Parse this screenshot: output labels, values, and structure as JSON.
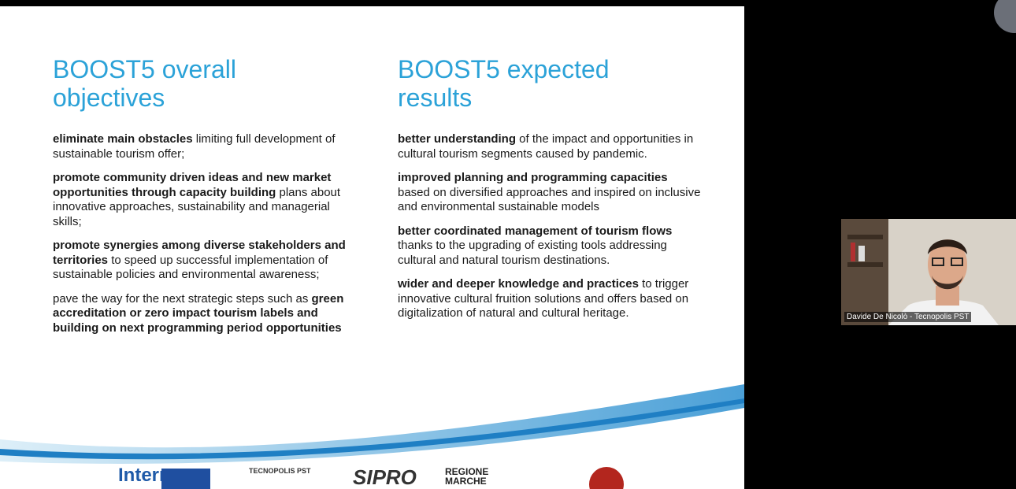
{
  "slide": {
    "left": {
      "title": "BOOST5 overall objectives",
      "items": [
        [
          {
            "text": "eliminate main obstacles",
            "bold": true
          },
          {
            "text": " limiting full development of sustainable tourism offer;",
            "bold": false
          }
        ],
        [
          {
            "text": "promote community driven ideas and new market opportunities through capacity building",
            "bold": true
          },
          {
            "text": " plans about innovative approaches, sustainability and managerial skills;",
            "bold": false
          }
        ],
        [
          {
            "text": "promote synergies among diverse stakeholders and territories",
            "bold": true
          },
          {
            "text": " to speed up successful implementation of sustainable policies and environmental awareness;",
            "bold": false
          }
        ],
        [
          {
            "text": "pave the way for the next strategic steps such as ",
            "bold": false
          },
          {
            "text": "green accreditation or zero impact tourism labels and building on next programming period opportunities",
            "bold": true
          }
        ]
      ]
    },
    "right": {
      "title": "BOOST5 expected results",
      "items": [
        [
          {
            "text": "better understanding",
            "bold": true
          },
          {
            "text": " of the impact and opportunities in cultural tourism segments caused by pandemic.",
            "bold": false
          }
        ],
        [
          {
            "text": "improved planning and programming capacities",
            "bold": true
          },
          {
            "text": " based on diversified approaches and inspired on inclusive and environmental sustainable models",
            "bold": false
          }
        ],
        [
          {
            "text": "better coordinated management of tourism flows",
            "bold": true
          },
          {
            "text": " thanks to the upgrading of existing tools addressing cultural and natural tourism destinations.",
            "bold": false
          }
        ],
        [
          {
            "text": "wider and deeper knowledge and practices",
            "bold": true
          },
          {
            "text": " to trigger innovative cultural fruition solutions and offers based on digitalization of natural and cultural heritage.",
            "bold": false
          }
        ]
      ]
    },
    "logos": [
      "Interreg",
      "TECNOPOLIS PST",
      "SIPRO",
      "REGIONE MARCHE"
    ]
  },
  "video": {
    "participant_name": "Davide De Nicolò - Tecnopolis PST"
  }
}
